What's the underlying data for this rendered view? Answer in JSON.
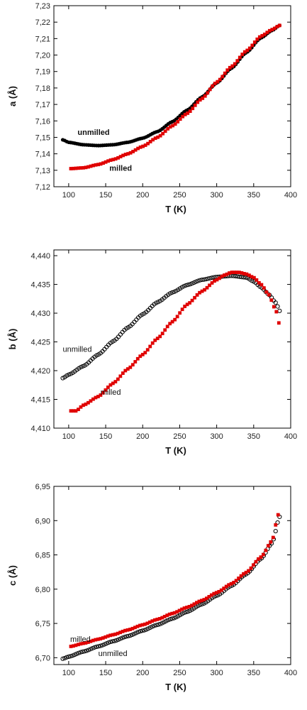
{
  "chart_data": [
    {
      "type": "scatter",
      "panel": "a",
      "xlabel": "T (K)",
      "ylabel": "a (Å)",
      "xlim": [
        80,
        400
      ],
      "ylim": [
        7.12,
        7.23
      ],
      "xticks": [
        100,
        150,
        200,
        250,
        300,
        350,
        400
      ],
      "xtick_labels": [
        "100",
        "150",
        "200",
        "250",
        "300",
        "350",
        "400"
      ],
      "yticks": [
        7.12,
        7.13,
        7.14,
        7.15,
        7.16,
        7.17,
        7.18,
        7.19,
        7.2,
        7.21,
        7.22,
        7.23
      ],
      "ytick_labels": [
        "7,12",
        "7,13",
        "7,14",
        "7,15",
        "7,16",
        "7,17",
        "7,18",
        "7,19",
        "7,20",
        "7,21",
        "7,22",
        "7,23"
      ],
      "grid": false,
      "series": [
        {
          "name": "unmilled",
          "color": "#000000",
          "marker": "circle-filled",
          "x": [
            92,
            100,
            120,
            140,
            160,
            180,
            200,
            220,
            240,
            260,
            280,
            300,
            320,
            340,
            360,
            375,
            385
          ],
          "y": [
            7.1485,
            7.147,
            7.1455,
            7.145,
            7.1455,
            7.147,
            7.1495,
            7.1535,
            7.1595,
            7.1665,
            7.1745,
            7.183,
            7.192,
            7.2015,
            7.2105,
            7.215,
            7.218
          ]
        },
        {
          "name": "milled",
          "color": "#e00000",
          "marker": "square",
          "x": [
            103,
            120,
            140,
            160,
            180,
            200,
            220,
            240,
            260,
            280,
            300,
            320,
            340,
            360,
            375,
            385
          ],
          "y": [
            7.131,
            7.1315,
            7.1335,
            7.1365,
            7.14,
            7.1445,
            7.15,
            7.157,
            7.1645,
            7.1735,
            7.1835,
            7.193,
            7.2025,
            7.2115,
            7.2155,
            7.218
          ]
        }
      ],
      "annotations": [
        {
          "text": "unmilled",
          "x": 112,
          "y": 7.1515,
          "bold": true
        },
        {
          "text": "milled",
          "x": 155,
          "y": 7.1298,
          "bold": true
        }
      ]
    },
    {
      "type": "scatter",
      "panel": "b",
      "xlabel": "T (K)",
      "ylabel": "b (Å)",
      "xlim": [
        80,
        400
      ],
      "ylim": [
        4.41,
        4.441
      ],
      "xticks": [
        100,
        150,
        200,
        250,
        300,
        350,
        400
      ],
      "xtick_labels": [
        "100",
        "150",
        "200",
        "250",
        "300",
        "350",
        "400"
      ],
      "yticks": [
        4.41,
        4.415,
        4.42,
        4.425,
        4.43,
        4.435,
        4.44
      ],
      "ytick_labels": [
        "4,410",
        "4,415",
        "4,420",
        "4,425",
        "4,430",
        "4,435",
        "4,440"
      ],
      "grid": false,
      "series": [
        {
          "name": "unmilled",
          "color": "#000000",
          "marker": "circle-open",
          "x": [
            92,
            100,
            120,
            140,
            160,
            180,
            200,
            220,
            240,
            260,
            280,
            300,
            320,
            340,
            350,
            360,
            370,
            380,
            385
          ],
          "y": [
            4.4187,
            4.4193,
            4.4208,
            4.4228,
            4.4251,
            4.4275,
            4.4298,
            4.4319,
            4.4336,
            4.4349,
            4.4358,
            4.4363,
            4.4365,
            4.4362,
            4.4355,
            4.4345,
            4.4333,
            4.4318,
            4.4304
          ]
        },
        {
          "name": "milled",
          "color": "#e00000",
          "marker": "square",
          "x": [
            103,
            110,
            120,
            140,
            160,
            180,
            200,
            220,
            240,
            260,
            280,
            300,
            310,
            320,
            330,
            340,
            350,
            360,
            370,
            380,
            384
          ],
          "y": [
            4.413,
            4.413,
            4.414,
            4.4155,
            4.4178,
            4.4203,
            4.4228,
            4.4256,
            4.4285,
            4.4315,
            4.4338,
            4.4358,
            4.4366,
            4.4371,
            4.4371,
            4.4368,
            4.4362,
            4.435,
            4.4333,
            4.4305,
            4.4283
          ]
        }
      ],
      "annotations": [
        {
          "text": "unmilled",
          "x": 92,
          "y": 4.4233,
          "bold": false
        },
        {
          "text": "milled",
          "x": 143,
          "y": 4.4158,
          "bold": false
        }
      ]
    },
    {
      "type": "scatter",
      "panel": "c",
      "xlabel": "T (K)",
      "ylabel": "c (Å)",
      "xlim": [
        80,
        400
      ],
      "ylim": [
        6.69,
        6.95
      ],
      "xticks": [
        100,
        150,
        200,
        250,
        300,
        350,
        400
      ],
      "xtick_labels": [
        "100",
        "150",
        "200",
        "250",
        "300",
        "350",
        "400"
      ],
      "yticks": [
        6.7,
        6.75,
        6.8,
        6.85,
        6.9,
        6.95
      ],
      "ytick_labels": [
        "6,70",
        "6,75",
        "6,80",
        "6,85",
        "6,90",
        "6,95"
      ],
      "grid": false,
      "series": [
        {
          "name": "unmilled",
          "color": "#000000",
          "marker": "circle-open",
          "x": [
            92,
            100,
            120,
            140,
            160,
            180,
            200,
            220,
            240,
            260,
            280,
            300,
            320,
            340,
            360,
            375,
            385
          ],
          "y": [
            6.6985,
            6.7015,
            6.709,
            6.7165,
            6.724,
            6.7315,
            6.7395,
            6.748,
            6.757,
            6.767,
            6.778,
            6.7905,
            6.805,
            6.822,
            6.8445,
            6.8675,
            6.9055
          ]
        },
        {
          "name": "milled",
          "color": "#e00000",
          "marker": "square",
          "x": [
            103,
            120,
            140,
            160,
            180,
            200,
            220,
            240,
            260,
            280,
            300,
            320,
            340,
            360,
            375,
            383
          ],
          "y": [
            6.7165,
            6.721,
            6.727,
            6.7335,
            6.7405,
            6.748,
            6.756,
            6.7645,
            6.7735,
            6.7835,
            6.795,
            6.808,
            6.8245,
            6.847,
            6.871,
            6.9085
          ]
        }
      ],
      "annotations": [
        {
          "text": "milled",
          "x": 102,
          "y": 6.7232,
          "bold": false
        },
        {
          "text": "unmilled",
          "x": 140,
          "y": 6.7025,
          "bold": false
        }
      ]
    }
  ]
}
